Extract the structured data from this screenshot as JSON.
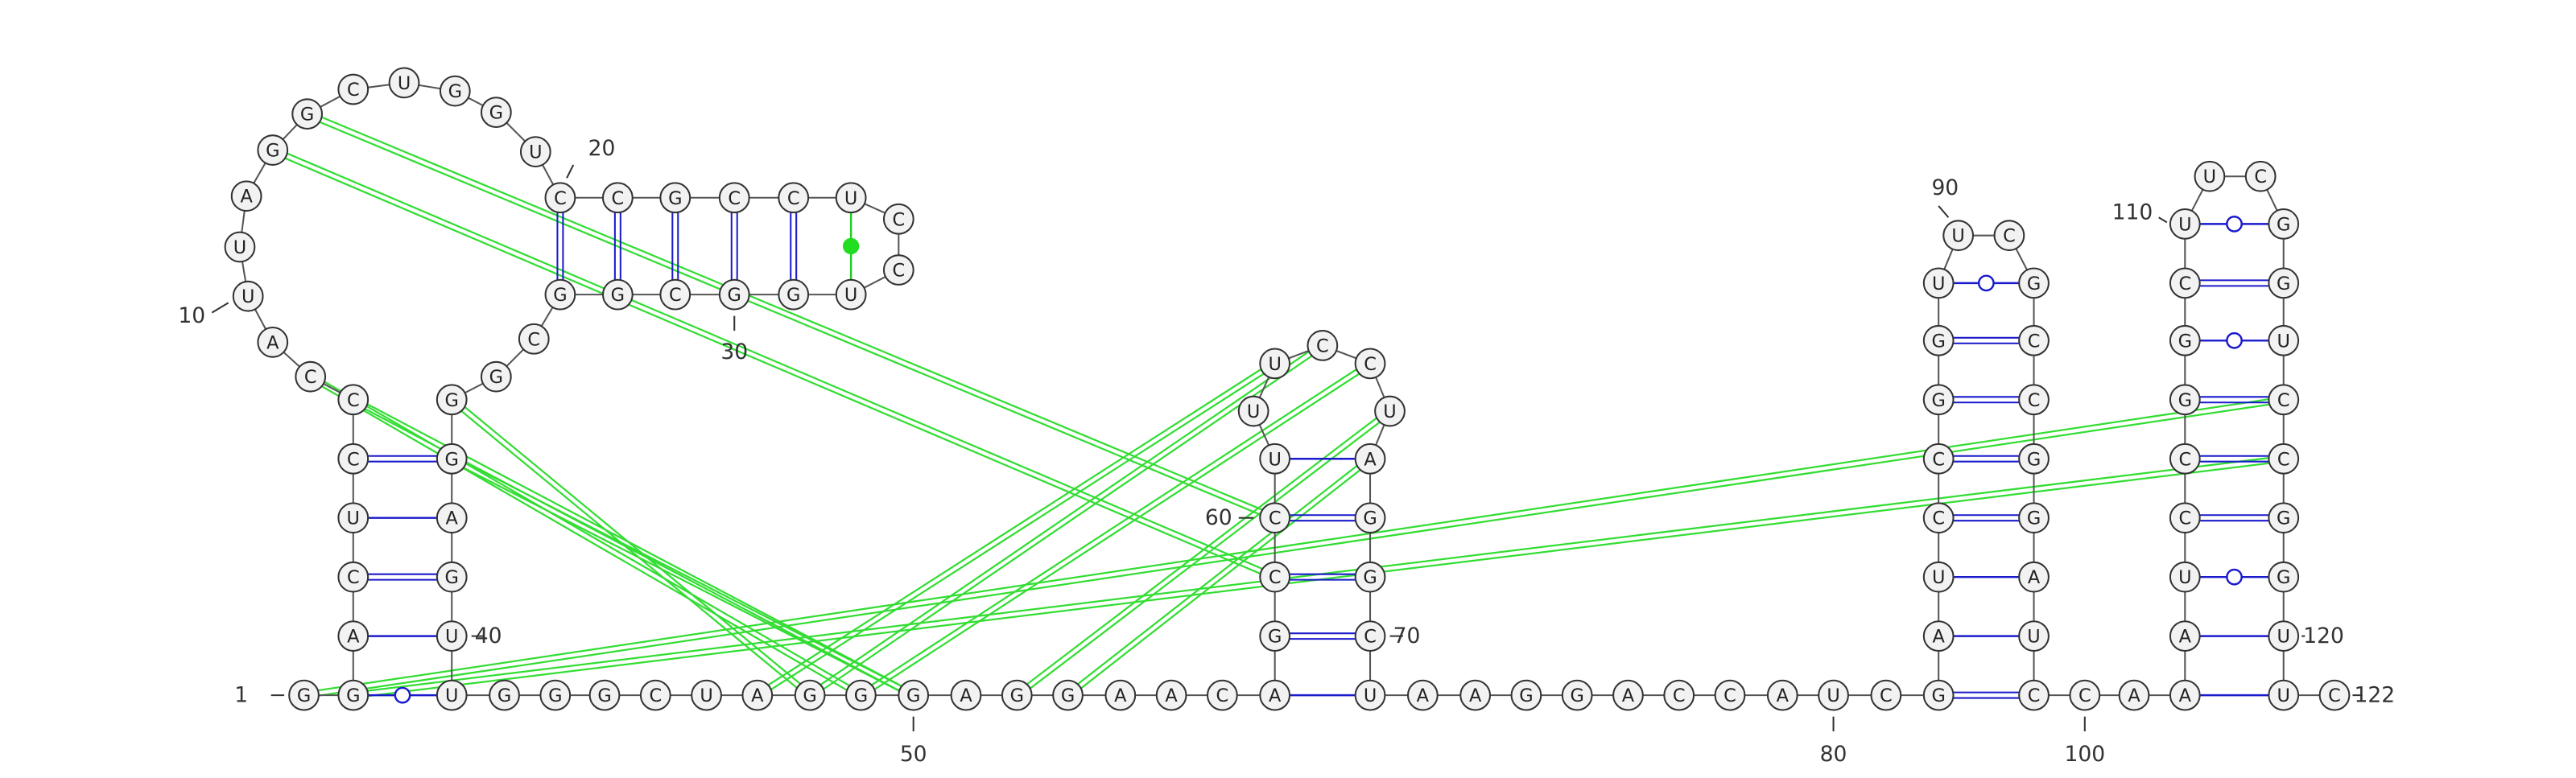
{
  "sequence": [
    "G",
    "G",
    "A",
    "C",
    "U",
    "C",
    "C",
    "C",
    "A",
    "U",
    "U",
    "A",
    "G",
    "G",
    "C",
    "U",
    "G",
    "G",
    "U",
    "C",
    "C",
    "G",
    "C",
    "C",
    "U",
    "C",
    "C",
    "U",
    "G",
    "G",
    "C",
    "G",
    "G",
    "C",
    "G",
    "G",
    "G",
    "A",
    "G",
    "U",
    "U",
    "G",
    "G",
    "G",
    "C",
    "U",
    "A",
    "G",
    "G",
    "G",
    "A",
    "G",
    "G",
    "A",
    "A",
    "C",
    "A",
    "G",
    "C",
    "C",
    "U",
    "U",
    "U",
    "C",
    "C",
    "U",
    "A",
    "G",
    "G",
    "C",
    "U",
    "A",
    "A",
    "G",
    "G",
    "A",
    "C",
    "C",
    "A",
    "U",
    "C",
    "G",
    "A",
    "U",
    "C",
    "C",
    "G",
    "G",
    "U",
    "U",
    "C",
    "G",
    "C",
    "C",
    "G",
    "G",
    "A",
    "U",
    "C",
    "C",
    "A",
    "A",
    "A",
    "U",
    "C",
    "C",
    "G",
    "G",
    "C",
    "U",
    "U",
    "C",
    "G",
    "G",
    "U",
    "C",
    "C",
    "G",
    "G",
    "U",
    "U",
    "C"
  ],
  "position_labels": [
    1,
    10,
    20,
    30,
    40,
    50,
    60,
    70,
    80,
    90,
    100,
    110,
    120,
    122
  ],
  "base_pairs": [
    [
      2,
      41,
      "wobble"
    ],
    [
      3,
      40,
      "single"
    ],
    [
      4,
      39,
      "double"
    ],
    [
      5,
      38,
      "single"
    ],
    [
      6,
      37,
      "double"
    ],
    [
      20,
      33,
      "double"
    ],
    [
      21,
      32,
      "double"
    ],
    [
      22,
      31,
      "double"
    ],
    [
      23,
      30,
      "double"
    ],
    [
      24,
      29,
      "double"
    ],
    [
      25,
      28,
      "dot"
    ],
    [
      57,
      71,
      "single"
    ],
    [
      58,
      70,
      "double"
    ],
    [
      59,
      69,
      "double"
    ],
    [
      60,
      68,
      "double"
    ],
    [
      61,
      67,
      "single"
    ],
    [
      82,
      99,
      "double"
    ],
    [
      83,
      98,
      "single"
    ],
    [
      84,
      97,
      "single"
    ],
    [
      85,
      96,
      "double"
    ],
    [
      86,
      95,
      "double"
    ],
    [
      87,
      94,
      "double"
    ],
    [
      88,
      93,
      "double"
    ],
    [
      89,
      92,
      "wobble"
    ],
    [
      102,
      121,
      "single"
    ],
    [
      103,
      120,
      "single"
    ],
    [
      104,
      119,
      "wobble"
    ],
    [
      105,
      118,
      "double"
    ],
    [
      106,
      117,
      "double"
    ],
    [
      107,
      116,
      "double"
    ],
    [
      108,
      115,
      "wobble"
    ],
    [
      109,
      114,
      "double"
    ],
    [
      110,
      113,
      "wobble"
    ]
  ],
  "tertiary_interactions": [
    [
      13,
      59
    ],
    [
      14,
      60
    ],
    [
      8,
      49
    ],
    [
      7,
      50
    ],
    [
      36,
      48
    ],
    [
      37,
      50
    ],
    [
      1,
      116
    ],
    [
      2,
      117
    ],
    [
      47,
      63
    ],
    [
      48,
      64
    ],
    [
      49,
      65
    ],
    [
      52,
      66
    ],
    [
      53,
      67
    ]
  ]
}
